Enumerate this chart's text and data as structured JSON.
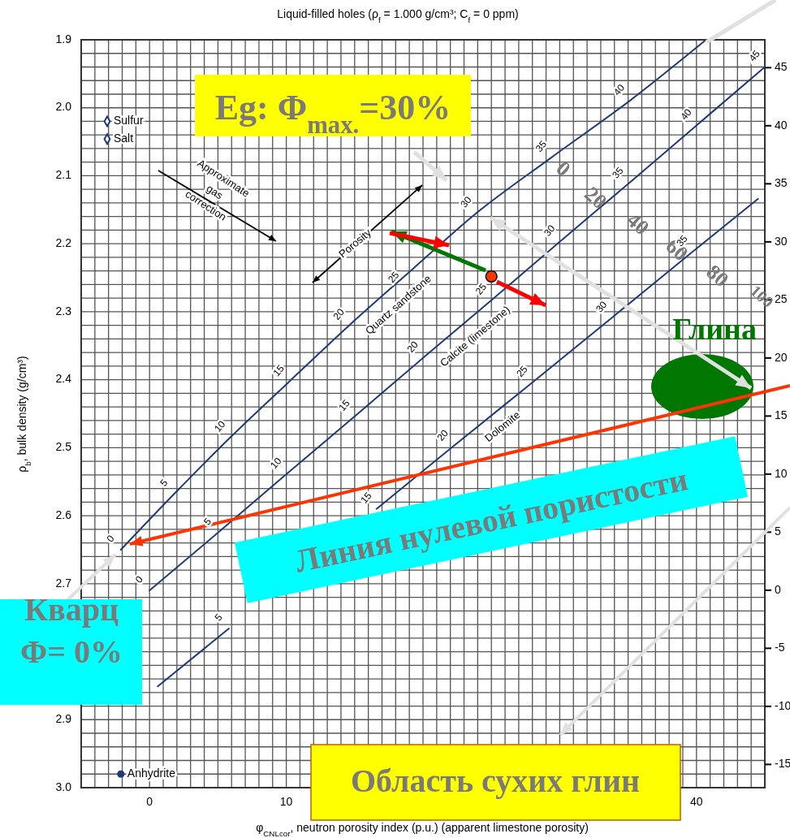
{
  "chart_data": {
    "type": "line",
    "title": "Liquid-filled holes (ρ$_{f}$ = 1.000 g/cm³; C$_{f}$ = 0 ppm)",
    "xlabel": "φ$_{CNLcor}$, neutron porosity index (p.u.)  (apparent limestone porosity)",
    "ylabel": "ρ$_{b}$, bulk density (g/cm³)",
    "xlim": [
      -5,
      45
    ],
    "xticks": [
      0,
      10,
      {
        "value": 20,
        "label": null
      },
      {
        "value": 30,
        "label": null
      },
      40
    ],
    "ylim": [
      3.0,
      1.9
    ],
    "yticks": [
      1.9,
      {
        "value": 2.0,
        "label": "2.0"
      },
      2.1,
      2.2,
      2.3,
      2.4,
      2.5,
      2.6,
      2.7,
      {
        "value": 2.8,
        "label": null
      },
      2.9,
      {
        "value": 3.0,
        "label": "3.0"
      }
    ],
    "y2lim": [
      -17,
      47.4
    ],
    "y2ticks": [
      -15,
      -10,
      -5,
      0,
      5,
      10,
      15,
      20,
      25,
      30,
      35,
      40,
      45
    ],
    "grid": true,
    "series": [
      {
        "name": "Quartz sandstone",
        "color": "#1f3a7a",
        "marker": "none",
        "x": [
          -2.1,
          1.8,
          5.9,
          10.2,
          14.6,
          19.2,
          23.9,
          29.4,
          35.1,
          40.7
        ],
        "values": [
          2.65,
          2.568,
          2.485,
          2.403,
          2.32,
          2.238,
          2.155,
          2.073,
          1.99,
          1.9
        ]
      },
      {
        "name": "Calcite (limestone)",
        "color": "#1f3a7a",
        "marker": "none",
        "x": [
          0,
          5,
          10,
          15,
          20,
          25,
          30,
          35,
          40,
          45
        ],
        "values": [
          2.71,
          2.625,
          2.539,
          2.454,
          2.368,
          2.283,
          2.197,
          2.112,
          2.026,
          1.94
        ]
      },
      {
        "name": "Dolomite",
        "color": "#1f3a7a",
        "marker": "none",
        "x": [
          0.6,
          5.8,
          11.2,
          16.6,
          22.2,
          28.0,
          33.8,
          39.7,
          44.5
        ],
        "values": [
          2.851,
          2.766,
          null,
          2.59,
          2.498,
          2.404,
          2.309,
          2.212,
          2.134
        ]
      },
      {
        "name": "Sulfur",
        "type": "scatter",
        "color": "#1f3a7a",
        "marker": "diamond",
        "x": [
          -3.1
        ],
        "values": [
          2.02
        ]
      },
      {
        "name": "Salt",
        "type": "scatter",
        "color": "#1f3a7a",
        "marker": "diamond",
        "x": [
          -3.1
        ],
        "values": [
          2.046
        ]
      },
      {
        "name": "Anhydrite",
        "type": "scatter",
        "color": "#1f3a7a",
        "marker": "circle",
        "x": [
          -2.1
        ],
        "values": [
          2.98
        ]
      },
      {
        "type": "scatter",
        "color": "#ff3300",
        "marker": "circle",
        "x": [
          25.0
        ],
        "values": [
          2.248
        ]
      }
    ],
    "annotations": [
      "Eg: Φ$_{max.}$=30%",
      "Approximate\ngas\ncorrection",
      "Porosity",
      "Глина",
      "Линия нулевой пористости",
      "Кварц\nΦ= 0%",
      "Область сухих глин",
      "0",
      "20",
      "40",
      "60",
      "80",
      "100",
      {
        "text": "0",
        "x": -2.1,
        "y": 2.65
      },
      {
        "text": "5",
        "x": 1.8,
        "y": 2.568
      },
      {
        "text": "10",
        "x": 5.9,
        "y": 2.485
      },
      {
        "text": "15",
        "x": 10.2,
        "y": 2.403
      },
      {
        "text": "20",
        "x": 14.6,
        "y": 2.32
      },
      {
        "text": "25",
        "x": 19.2,
        "y": 2.238
      },
      {
        "text": "30",
        "x": 23.9,
        "y": 2.155
      },
      {
        "text": "35",
        "x": 29.4,
        "y": 2.073
      },
      {
        "text": "40",
        "x": 35.1,
        "y": 1.99
      },
      {
        "text": "0",
        "x": 0,
        "y": 2.71
      },
      {
        "text": "5",
        "x": 5,
        "y": 2.625
      },
      {
        "text": "10",
        "x": 10,
        "y": 2.539
      },
      {
        "text": "15",
        "x": 15,
        "y": 2.454
      },
      {
        "text": "20",
        "x": 20,
        "y": 2.368
      },
      {
        "text": "25",
        "x": 25,
        "y": 2.283
      },
      {
        "text": "30",
        "x": 30,
        "y": 2.197
      },
      {
        "text": "35",
        "x": 35,
        "y": 2.112
      },
      {
        "text": "40",
        "x": 40,
        "y": 2.026
      },
      {
        "text": "45",
        "x": 45,
        "y": 1.94
      },
      {
        "text": "5",
        "x": 5.8,
        "y": 2.766
      },
      {
        "text": "15",
        "x": 16.6,
        "y": 2.59
      },
      {
        "text": "20",
        "x": 22.2,
        "y": 2.498
      },
      {
        "text": "25",
        "x": 28.0,
        "y": 2.404
      },
      {
        "text": "30",
        "x": 33.8,
        "y": 2.309
      },
      {
        "text": "35",
        "x": 39.7,
        "y": 2.212
      }
    ]
  }
}
